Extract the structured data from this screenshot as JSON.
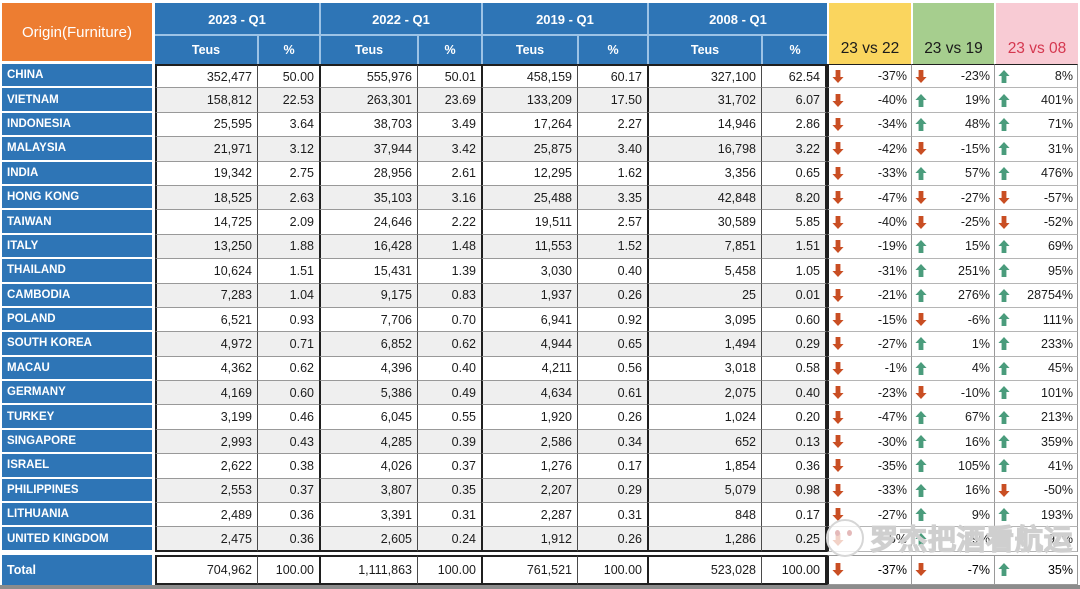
{
  "title_cell": "Origin(Furniture)",
  "colors": {
    "header_blue": "#2E75B6",
    "origin_orange": "#ED7D31",
    "zebra_gray": "#EFEFEF",
    "comp1_bg": "#FAD55E",
    "comp2_bg": "#A6CE8E",
    "comp3_bg": "#F8CBD4",
    "comp3_text": "#D5374F",
    "arrow_up": "#4A9C7C",
    "arrow_down": "#C94E23"
  },
  "header": {
    "groups": [
      "2023 - Q1",
      "2022 - Q1",
      "2019 - Q1",
      "2008 - Q1"
    ],
    "sub_labels": [
      "Teus",
      "%"
    ],
    "comparisons": [
      {
        "label": "23 vs 22",
        "bg": "#FAD55E",
        "fg": "#1a1a1a"
      },
      {
        "label": "23 vs 19",
        "bg": "#A6CE8E",
        "fg": "#1a1a1a"
      },
      {
        "label": "23 vs 08",
        "bg": "#F8CBD4",
        "fg": "#D5374F"
      }
    ]
  },
  "rows": [
    {
      "origin": "CHINA",
      "values": [
        "352,477",
        "50.00",
        "555,976",
        "50.01",
        "458,159",
        "60.17",
        "327,100",
        "62.54"
      ],
      "comps": [
        [
          "down",
          "-37%"
        ],
        [
          "down",
          "-23%"
        ],
        [
          "up",
          "8%"
        ]
      ]
    },
    {
      "origin": "VIETNAM",
      "values": [
        "158,812",
        "22.53",
        "263,301",
        "23.69",
        "133,209",
        "17.50",
        "31,702",
        "6.07"
      ],
      "comps": [
        [
          "down",
          "-40%"
        ],
        [
          "up",
          "19%"
        ],
        [
          "up",
          "401%"
        ]
      ]
    },
    {
      "origin": "INDONESIA",
      "values": [
        "25,595",
        "3.64",
        "38,703",
        "3.49",
        "17,264",
        "2.27",
        "14,946",
        "2.86"
      ],
      "comps": [
        [
          "down",
          "-34%"
        ],
        [
          "up",
          "48%"
        ],
        [
          "up",
          "71%"
        ]
      ]
    },
    {
      "origin": "MALAYSIA",
      "values": [
        "21,971",
        "3.12",
        "37,944",
        "3.42",
        "25,875",
        "3.40",
        "16,798",
        "3.22"
      ],
      "comps": [
        [
          "down",
          "-42%"
        ],
        [
          "down",
          "-15%"
        ],
        [
          "up",
          "31%"
        ]
      ]
    },
    {
      "origin": "INDIA",
      "values": [
        "19,342",
        "2.75",
        "28,956",
        "2.61",
        "12,295",
        "1.62",
        "3,356",
        "0.65"
      ],
      "comps": [
        [
          "down",
          "-33%"
        ],
        [
          "up",
          "57%"
        ],
        [
          "up",
          "476%"
        ]
      ]
    },
    {
      "origin": "HONG KONG",
      "values": [
        "18,525",
        "2.63",
        "35,103",
        "3.16",
        "25,488",
        "3.35",
        "42,848",
        "8.20"
      ],
      "comps": [
        [
          "down",
          "-47%"
        ],
        [
          "down",
          "-27%"
        ],
        [
          "down",
          "-57%"
        ]
      ]
    },
    {
      "origin": "TAIWAN",
      "values": [
        "14,725",
        "2.09",
        "24,646",
        "2.22",
        "19,511",
        "2.57",
        "30,589",
        "5.85"
      ],
      "comps": [
        [
          "down",
          "-40%"
        ],
        [
          "down",
          "-25%"
        ],
        [
          "down",
          "-52%"
        ]
      ]
    },
    {
      "origin": "ITALY",
      "values": [
        "13,250",
        "1.88",
        "16,428",
        "1.48",
        "11,553",
        "1.52",
        "7,851",
        "1.51"
      ],
      "comps": [
        [
          "down",
          "-19%"
        ],
        [
          "up",
          "15%"
        ],
        [
          "up",
          "69%"
        ]
      ]
    },
    {
      "origin": "THAILAND",
      "values": [
        "10,624",
        "1.51",
        "15,431",
        "1.39",
        "3,030",
        "0.40",
        "5,458",
        "1.05"
      ],
      "comps": [
        [
          "down",
          "-31%"
        ],
        [
          "up",
          "251%"
        ],
        [
          "up",
          "95%"
        ]
      ]
    },
    {
      "origin": "CAMBODIA",
      "values": [
        "7,283",
        "1.04",
        "9,175",
        "0.83",
        "1,937",
        "0.26",
        "25",
        "0.01"
      ],
      "comps": [
        [
          "down",
          "-21%"
        ],
        [
          "up",
          "276%"
        ],
        [
          "up",
          "28754%"
        ]
      ]
    },
    {
      "origin": "POLAND",
      "values": [
        "6,521",
        "0.93",
        "7,706",
        "0.70",
        "6,941",
        "0.92",
        "3,095",
        "0.60"
      ],
      "comps": [
        [
          "down",
          "-15%"
        ],
        [
          "down",
          "-6%"
        ],
        [
          "up",
          "111%"
        ]
      ]
    },
    {
      "origin": "SOUTH KOREA",
      "values": [
        "4,972",
        "0.71",
        "6,852",
        "0.62",
        "4,944",
        "0.65",
        "1,494",
        "0.29"
      ],
      "comps": [
        [
          "down",
          "-27%"
        ],
        [
          "up",
          "1%"
        ],
        [
          "up",
          "233%"
        ]
      ]
    },
    {
      "origin": "MACAU",
      "values": [
        "4,362",
        "0.62",
        "4,396",
        "0.40",
        "4,211",
        "0.56",
        "3,018",
        "0.58"
      ],
      "comps": [
        [
          "down",
          "-1%"
        ],
        [
          "up",
          "4%"
        ],
        [
          "up",
          "45%"
        ]
      ]
    },
    {
      "origin": "GERMANY",
      "values": [
        "4,169",
        "0.60",
        "5,386",
        "0.49",
        "4,634",
        "0.61",
        "2,075",
        "0.40"
      ],
      "comps": [
        [
          "down",
          "-23%"
        ],
        [
          "down",
          "-10%"
        ],
        [
          "up",
          "101%"
        ]
      ]
    },
    {
      "origin": "TURKEY",
      "values": [
        "3,199",
        "0.46",
        "6,045",
        "0.55",
        "1,920",
        "0.26",
        "1,024",
        "0.20"
      ],
      "comps": [
        [
          "down",
          "-47%"
        ],
        [
          "up",
          "67%"
        ],
        [
          "up",
          "213%"
        ]
      ]
    },
    {
      "origin": "SINGAPORE",
      "values": [
        "2,993",
        "0.43",
        "4,285",
        "0.39",
        "2,586",
        "0.34",
        "652",
        "0.13"
      ],
      "comps": [
        [
          "down",
          "-30%"
        ],
        [
          "up",
          "16%"
        ],
        [
          "up",
          "359%"
        ]
      ]
    },
    {
      "origin": "ISRAEL",
      "values": [
        "2,622",
        "0.38",
        "4,026",
        "0.37",
        "1,276",
        "0.17",
        "1,854",
        "0.36"
      ],
      "comps": [
        [
          "down",
          "-35%"
        ],
        [
          "up",
          "105%"
        ],
        [
          "up",
          "41%"
        ]
      ]
    },
    {
      "origin": "PHILIPPINES",
      "values": [
        "2,553",
        "0.37",
        "3,807",
        "0.35",
        "2,207",
        "0.29",
        "5,079",
        "0.98"
      ],
      "comps": [
        [
          "down",
          "-33%"
        ],
        [
          "up",
          "16%"
        ],
        [
          "down",
          "-50%"
        ]
      ]
    },
    {
      "origin": "LITHUANIA",
      "values": [
        "2,489",
        "0.36",
        "3,391",
        "0.31",
        "2,287",
        "0.31",
        "848",
        "0.17"
      ],
      "comps": [
        [
          "down",
          "-27%"
        ],
        [
          "up",
          "9%"
        ],
        [
          "up",
          "193%"
        ]
      ]
    },
    {
      "origin": "UNITED KINGDOM",
      "values": [
        "2,475",
        "0.36",
        "2,605",
        "0.24",
        "1,912",
        "0.26",
        "1,286",
        "0.25"
      ],
      "comps": [
        [
          "down",
          "-5%"
        ],
        [
          "up",
          "29%"
        ],
        [
          "up",
          "92%"
        ]
      ]
    }
  ],
  "total": {
    "origin": "Total",
    "values": [
      "704,962",
      "100.00",
      "1,111,863",
      "100.00",
      "761,521",
      "100.00",
      "523,028",
      "100.00"
    ],
    "comps": [
      [
        "down",
        "-37%"
      ],
      [
        "down",
        "-7%"
      ],
      [
        "up",
        "35%"
      ]
    ]
  },
  "watermark": {
    "text": "罗杰把酒看航运"
  }
}
